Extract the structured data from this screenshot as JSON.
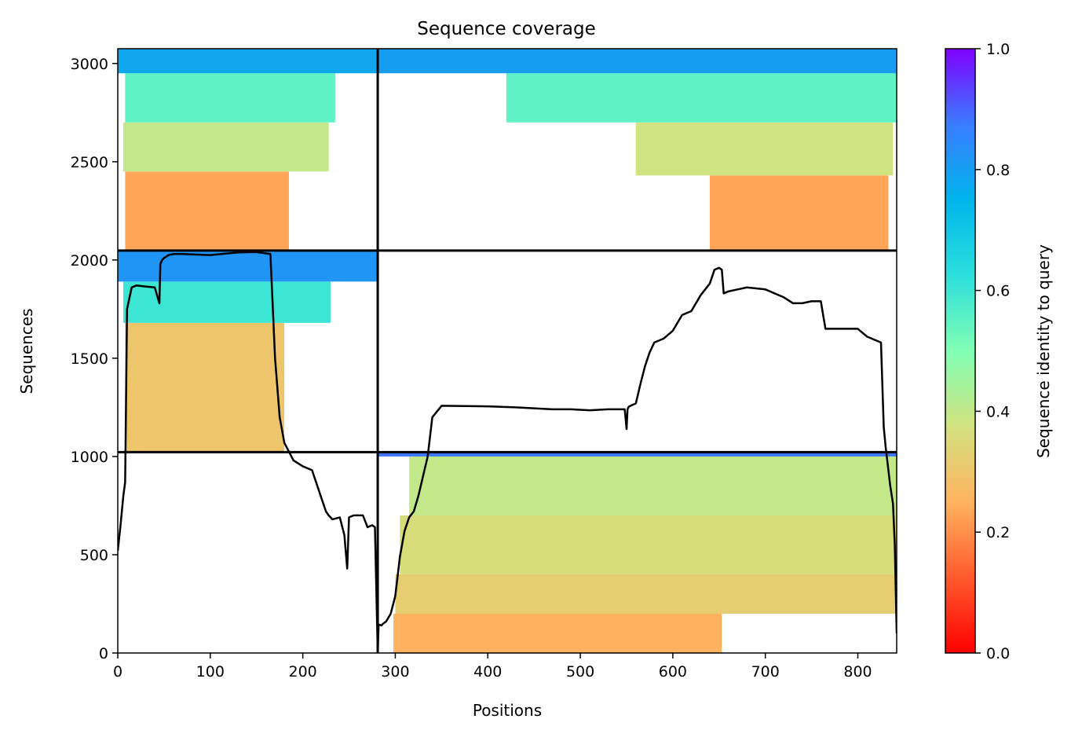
{
  "chart_data": {
    "type": "heatmap",
    "title": "Sequence coverage",
    "xlabel": "Positions",
    "ylabel": "Sequences",
    "xlim": [
      0,
      842
    ],
    "ylim": [
      0,
      3075
    ],
    "x_ticks": [
      {
        "value": 0,
        "label": "0"
      },
      {
        "value": 100,
        "label": "100"
      },
      {
        "value": 200,
        "label": "200"
      },
      {
        "value": 300,
        "label": "300"
      },
      {
        "value": 400,
        "label": "400"
      },
      {
        "value": 500,
        "label": "500"
      },
      {
        "value": 600,
        "label": "600"
      },
      {
        "value": 700,
        "label": "700"
      },
      {
        "value": 800,
        "label": "800"
      }
    ],
    "y_ticks": [
      {
        "value": 0,
        "label": "0"
      },
      {
        "value": 500,
        "label": "500"
      },
      {
        "value": 1000,
        "label": "1000"
      },
      {
        "value": 1500,
        "label": "1500"
      },
      {
        "value": 2000,
        "label": "2000"
      },
      {
        "value": 2500,
        "label": "2500"
      },
      {
        "value": 3000,
        "label": "3000"
      }
    ],
    "colorbar": {
      "label": "Sequence identity to query",
      "range": [
        0,
        1
      ],
      "colormap": "rainbow_r",
      "ticks": [
        {
          "value": 0.0,
          "label": "0.0"
        },
        {
          "value": 0.2,
          "label": "0.2"
        },
        {
          "value": 0.4,
          "label": "0.4"
        },
        {
          "value": 0.6,
          "label": "0.6"
        },
        {
          "value": 0.8,
          "label": "0.8"
        },
        {
          "value": 1.0,
          "label": "1.0"
        }
      ]
    },
    "chain_boundaries": {
      "x": [
        281
      ],
      "y": [
        1022,
        2048
      ]
    },
    "coverage_blocks": [
      {
        "x": [
          0,
          281
        ],
        "y": [
          2048,
          3075
        ],
        "bands": [
          {
            "from": 2048,
            "to": 2450,
            "identity": 0.23,
            "start": 8,
            "end": 185
          },
          {
            "from": 2450,
            "to": 2700,
            "identity": 0.4,
            "start": 6,
            "end": 228
          },
          {
            "from": 2700,
            "to": 2950,
            "identity": 0.55,
            "start": 8,
            "end": 235
          },
          {
            "from": 2950,
            "to": 3075,
            "identity": 0.78,
            "start": 0,
            "end": 281
          }
        ]
      },
      {
        "x": [
          281,
          842
        ],
        "y": [
          2048,
          3075
        ],
        "bands": [
          {
            "from": 2048,
            "to": 2430,
            "identity": 0.23,
            "start": 640,
            "end": 833
          },
          {
            "from": 2430,
            "to": 2700,
            "identity": 0.38,
            "start": 560,
            "end": 838
          },
          {
            "from": 2700,
            "to": 2950,
            "identity": 0.55,
            "start": 420,
            "end": 842
          },
          {
            "from": 2950,
            "to": 3075,
            "identity": 0.8,
            "start": 281,
            "end": 842
          }
        ]
      },
      {
        "x": [
          0,
          281
        ],
        "y": [
          1022,
          2048
        ],
        "bands": [
          {
            "from": 1022,
            "to": 1680,
            "identity": 0.3,
            "start": 8,
            "end": 180
          },
          {
            "from": 1680,
            "to": 1890,
            "identity": 0.6,
            "start": 6,
            "end": 230
          },
          {
            "from": 1890,
            "to": 2048,
            "identity": 0.82,
            "start": 0,
            "end": 281
          }
        ]
      },
      {
        "x": [
          281,
          842
        ],
        "y": [
          0,
          1022
        ],
        "bands": [
          {
            "from": 0,
            "to": 200,
            "identity": 0.25,
            "start": 298,
            "end": 653
          },
          {
            "from": 200,
            "to": 400,
            "identity": 0.32,
            "start": 300,
            "end": 842
          },
          {
            "from": 400,
            "to": 700,
            "identity": 0.36,
            "start": 305,
            "end": 842
          },
          {
            "from": 700,
            "to": 1000,
            "identity": 0.4,
            "start": 315,
            "end": 842
          },
          {
            "from": 1000,
            "to": 1022,
            "identity": 0.88,
            "start": 281,
            "end": 842
          }
        ]
      }
    ],
    "coverage_line": {
      "x": [
        0,
        3,
        6,
        8,
        10,
        15,
        20,
        30,
        40,
        45,
        46,
        48,
        50,
        55,
        60,
        70,
        100,
        130,
        150,
        165,
        170,
        175,
        180,
        190,
        200,
        210,
        225,
        228,
        232,
        240,
        245,
        248,
        250,
        255,
        260,
        265,
        270,
        275,
        278,
        281,
        282,
        285,
        287,
        290,
        295,
        300,
        305,
        310,
        315,
        320,
        325,
        330,
        335,
        340,
        350,
        400,
        430,
        450,
        470,
        490,
        510,
        530,
        548,
        550,
        551,
        552,
        553,
        560,
        565,
        570,
        575,
        580,
        585,
        590,
        595,
        600,
        610,
        620,
        630,
        640,
        645,
        650,
        653,
        655,
        660,
        670,
        680,
        700,
        720,
        730,
        740,
        750,
        760,
        765,
        766,
        780,
        800,
        810,
        820,
        825,
        828,
        830,
        835,
        838,
        840,
        842
      ],
      "y": [
        520,
        650,
        800,
        870,
        1750,
        1860,
        1870,
        1865,
        1860,
        1780,
        1980,
        2000,
        2010,
        2025,
        2030,
        2030,
        2025,
        2038,
        2040,
        2030,
        1500,
        1200,
        1070,
        980,
        950,
        930,
        720,
        700,
        680,
        690,
        600,
        430,
        690,
        700,
        700,
        700,
        640,
        650,
        640,
        0,
        145,
        140,
        150,
        160,
        200,
        290,
        490,
        620,
        690,
        720,
        800,
        900,
        1000,
        1200,
        1258,
        1255,
        1250,
        1245,
        1240,
        1240,
        1235,
        1240,
        1240,
        1140,
        1240,
        1250,
        1255,
        1270,
        1370,
        1460,
        1530,
        1580,
        1590,
        1600,
        1620,
        1640,
        1720,
        1740,
        1820,
        1880,
        1950,
        1960,
        1950,
        1830,
        1840,
        1850,
        1860,
        1850,
        1810,
        1780,
        1780,
        1790,
        1790,
        1650,
        1650,
        1650,
        1650,
        1610,
        1590,
        1580,
        1150,
        1050,
        850,
        760,
        550,
        100
      ]
    }
  }
}
